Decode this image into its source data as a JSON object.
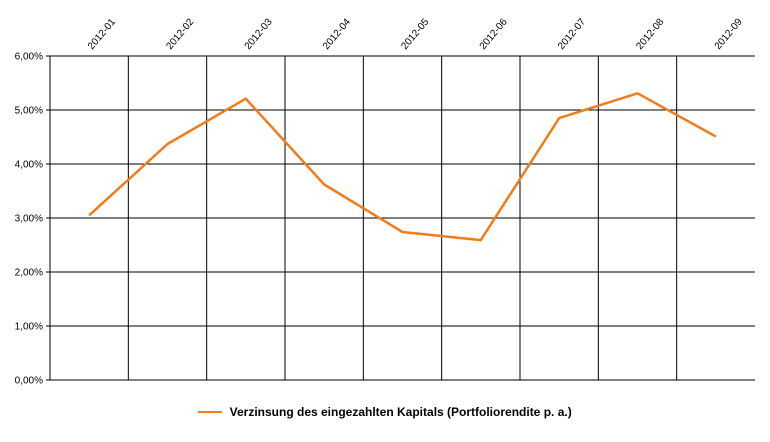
{
  "chart_data": {
    "type": "line",
    "categories": [
      "2012-01",
      "2012-02",
      "2012-03",
      "2012-04",
      "2012-05",
      "2012-06",
      "2012-07",
      "2012-08",
      "2012-09"
    ],
    "series": [
      {
        "name": "Verzinsung des eingezahlten Kapitals (Portfoliorendite p. a.)",
        "values": [
          3.05,
          4.37,
          5.21,
          3.62,
          2.74,
          2.59,
          4.85,
          5.31,
          4.51
        ],
        "color": "#f07c1a"
      }
    ],
    "ylim": [
      0,
      6
    ],
    "yticks": [
      0,
      1,
      2,
      3,
      4,
      5,
      6
    ],
    "ytick_labels": [
      "0,00%",
      "1,00%",
      "2,00%",
      "3,00%",
      "4,00%",
      "5,00%",
      "6,00%"
    ],
    "x_tick_labels_position": "top",
    "grid": true,
    "legend_position": "bottom-center"
  }
}
